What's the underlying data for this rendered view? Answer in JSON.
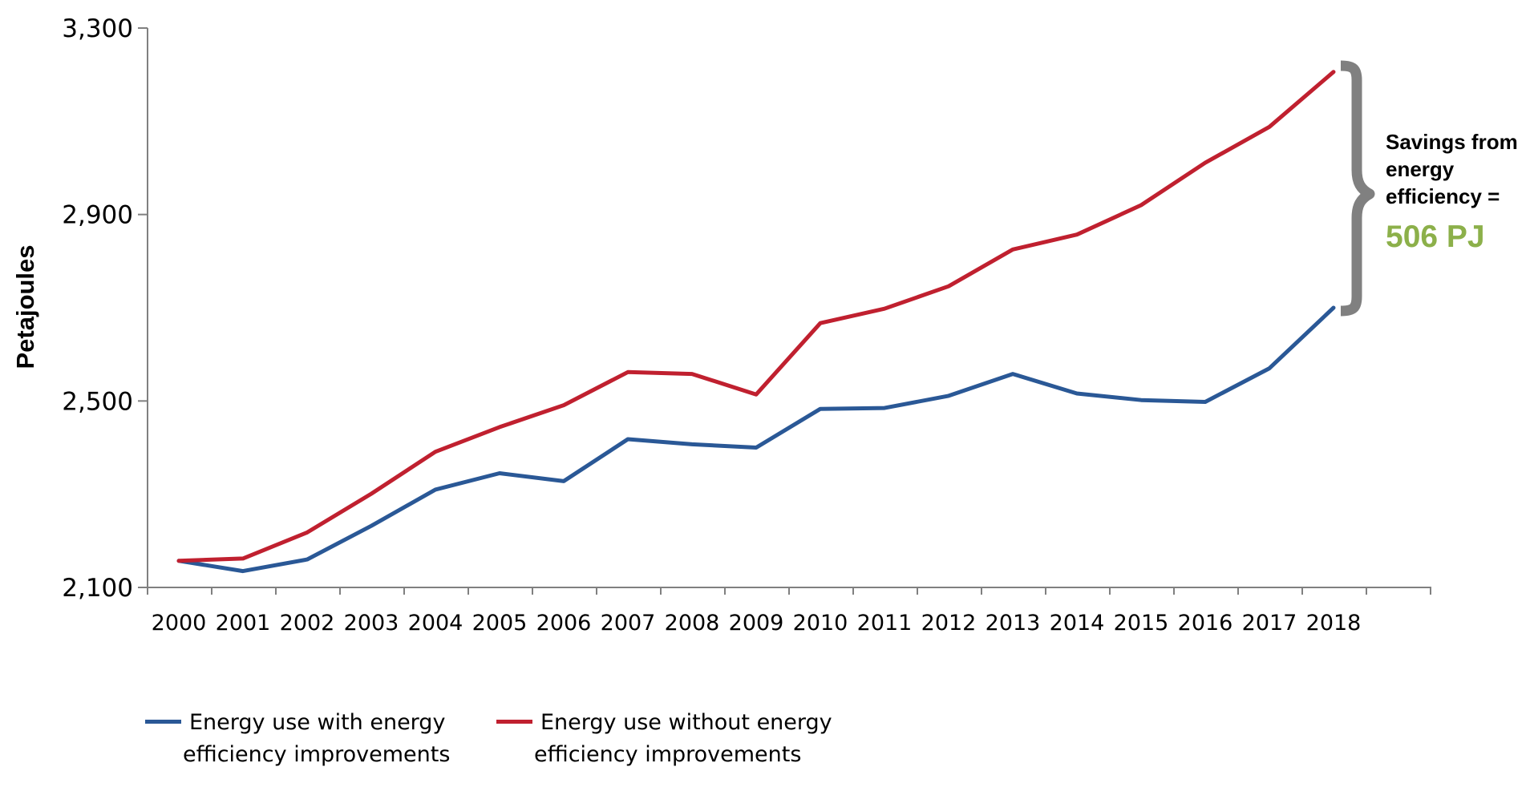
{
  "chart_data": {
    "type": "line",
    "ylabel": "Petajoules",
    "xlabel": "",
    "title": "",
    "ylim": [
      2100,
      3300
    ],
    "yticks": [
      2100,
      2500,
      2900,
      3300
    ],
    "ytick_labels": [
      "2,100",
      "2,500",
      "2,900",
      "3,300"
    ],
    "categories": [
      "2000",
      "2001",
      "2002",
      "2003",
      "2004",
      "2005",
      "2006",
      "2007",
      "2008",
      "2009",
      "2010",
      "2011",
      "2012",
      "2013",
      "2014",
      "2015",
      "2016",
      "2017",
      "2018"
    ],
    "series": [
      {
        "name": "Energy use with energy efficiency improvements",
        "color": "#2a5896",
        "values": [
          2157,
          2135,
          2160,
          2232,
          2310,
          2345,
          2328,
          2418,
          2407,
          2400,
          2483,
          2485,
          2511,
          2558,
          2516,
          2502,
          2498,
          2570,
          2700
        ]
      },
      {
        "name": "Energy use without energy efficiency improvements",
        "color": "#c0202f",
        "values": [
          2157,
          2162,
          2218,
          2301,
          2391,
          2444,
          2491,
          2562,
          2558,
          2514,
          2667,
          2698,
          2746,
          2825,
          2857,
          2920,
          3011,
          3088,
          3206
        ]
      }
    ],
    "legend_position": "bottom-left",
    "grid": false,
    "annotation": {
      "text": "Savings from energy efficiency =",
      "value": "506 PJ",
      "value_color": "#8cb04a",
      "brace_color": "#808080"
    }
  },
  "legend": {
    "item1_line1": "Energy use with energy",
    "item1_line2": "efficiency improvements",
    "item2_line1": "Energy use without energy",
    "item2_line2": "efficiency improvements"
  }
}
